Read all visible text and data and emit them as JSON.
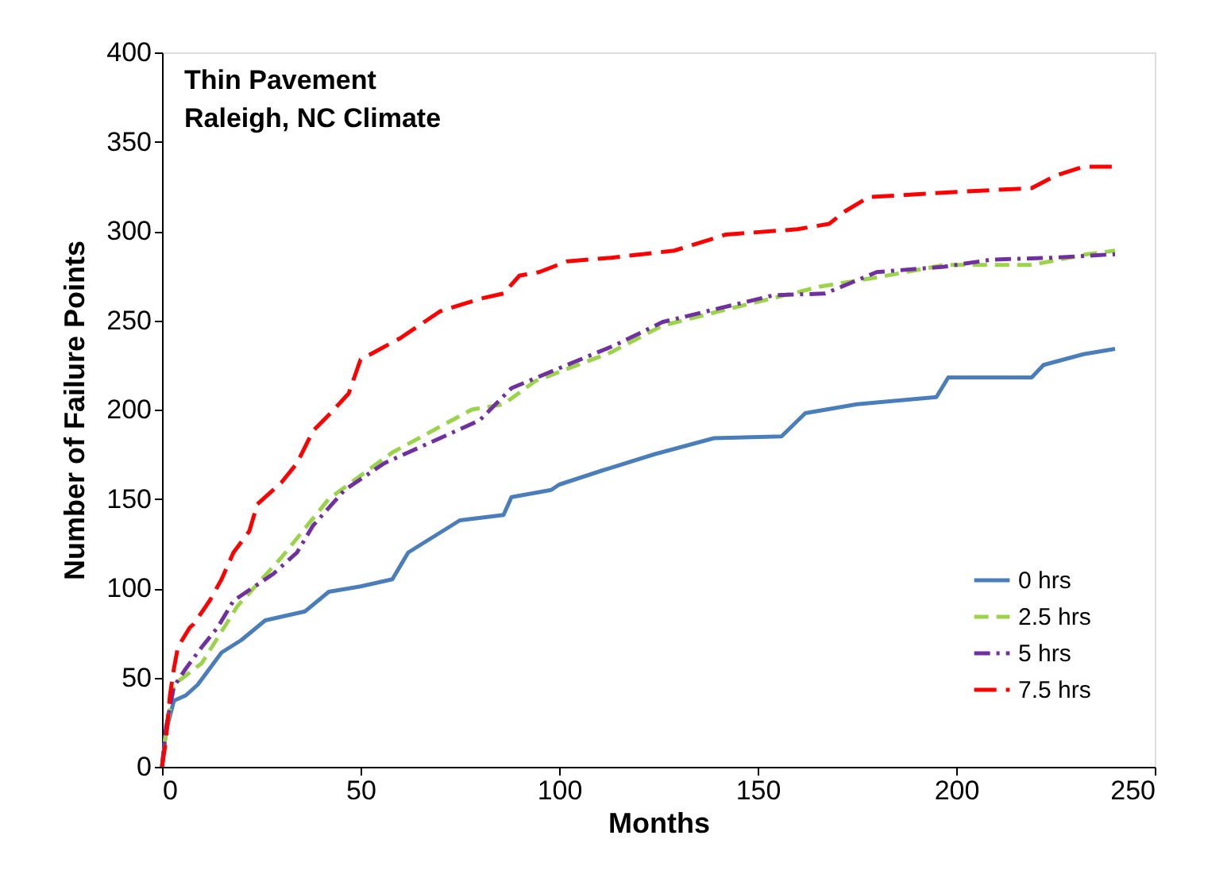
{
  "chart_data": {
    "type": "line",
    "title": "Thin Pavement",
    "subtitle": "Raleigh, NC Climate",
    "xlabel": "Months",
    "ylabel": "Number of Failure Points",
    "xlim": [
      0,
      250
    ],
    "xticks": [
      0,
      50,
      100,
      150,
      200,
      250
    ],
    "ylim": [
      0,
      400
    ],
    "yticks": [
      0,
      50,
      100,
      150,
      200,
      250,
      300,
      350,
      400
    ],
    "grid": false,
    "legend": "bottom right",
    "marker": "none",
    "series": [
      {
        "name": "0 hrs",
        "color": "#4a7ebb",
        "line_style": "solid",
        "x": [
          0,
          1,
          3,
          6,
          9,
          15,
          20,
          26,
          36,
          42,
          50,
          58,
          62,
          75,
          86,
          88,
          98,
          100,
          111,
          124,
          139,
          156,
          162,
          175,
          195,
          198,
          219,
          222,
          232,
          240
        ],
        "values": [
          0,
          20,
          37,
          40,
          46,
          64,
          71,
          82,
          87,
          98,
          101,
          105,
          120,
          138,
          141,
          151,
          155,
          158,
          166,
          175,
          184,
          185,
          198,
          203,
          207,
          218,
          218,
          225,
          231,
          234
        ]
      },
      {
        "name": "2.5 hrs",
        "color": "#9bd34a",
        "line_style": "dashed",
        "x": [
          0,
          1,
          3,
          10,
          19,
          30,
          42,
          58,
          78,
          86,
          94,
          113,
          126,
          142,
          166,
          180,
          197,
          219,
          233,
          240
        ],
        "values": [
          0,
          20,
          46,
          58,
          90,
          117,
          150,
          176,
          200,
          203,
          216,
          232,
          247,
          256,
          269,
          274,
          281,
          281,
          287,
          289
        ]
      },
      {
        "name": "5 hrs",
        "color": "#7030a0",
        "line_style": "dashed",
        "x": [
          0,
          1,
          3,
          6,
          10,
          14,
          18,
          28,
          34,
          38,
          46,
          56,
          68,
          80,
          88,
          102,
          114,
          126,
          139,
          154,
          167,
          180,
          197,
          209,
          224,
          240
        ],
        "values": [
          0,
          22,
          45,
          55,
          67,
          78,
          93,
          108,
          120,
          135,
          155,
          170,
          182,
          194,
          212,
          225,
          236,
          249,
          256,
          264,
          265,
          277,
          280,
          284,
          285,
          287
        ]
      },
      {
        "name": "7.5 hrs",
        "color": "#ff0000",
        "line_style": "dashed",
        "x": [
          0,
          1,
          2,
          3,
          4,
          7,
          8,
          12,
          15,
          18,
          22,
          24,
          30,
          34,
          38,
          42,
          47,
          50,
          60,
          70,
          80,
          86,
          90,
          95,
          102,
          113,
          129,
          142,
          160,
          168,
          172,
          178,
          201,
          219,
          225,
          232,
          240
        ],
        "values": [
          0,
          15,
          40,
          55,
          67,
          78,
          80,
          93,
          105,
          120,
          132,
          147,
          159,
          170,
          188,
          197,
          209,
          228,
          240,
          255,
          262,
          265,
          275,
          277,
          283,
          285,
          289,
          298,
          301,
          304,
          311,
          319,
          322,
          324,
          331,
          336,
          336
        ]
      }
    ]
  }
}
